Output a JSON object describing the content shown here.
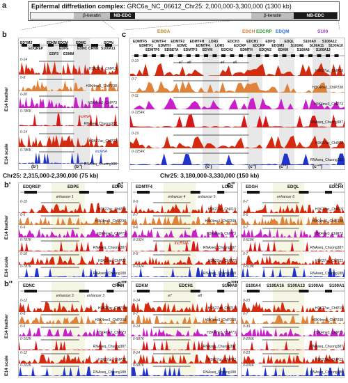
{
  "panel_a": {
    "label": "a",
    "title_bold": "Epifermal diffretiation complex:",
    "title_rest": "GRC6a_NC_06612_Chr25: 2,000,000-3,300,000 (1300 kb)",
    "segments": [
      "β-keratin",
      "NB-EDC",
      "β-keratin",
      "NB-EDC"
    ]
  },
  "panel_b": {
    "label": "b",
    "genes": [
      "EDYM2",
      "EDKM",
      "EDCM",
      "EDMC",
      "CRNN",
      "SCPN",
      "EDQREP",
      "EDP3",
      "EDPE",
      "EDMM",
      "EDNC",
      "S100A11"
    ],
    "subregions": [
      "(b')",
      "(b'')"
    ],
    "tracks": [
      {
        "range": "0-14",
        "name": "H3K27ac_ChIP19"
      },
      {
        "range": "0-8",
        "name": "H3K4me1_ChIP238"
      },
      {
        "range": "0-20",
        "name": "H3K4me3_ChIP73"
      },
      {
        "range": "0-780K",
        "name": "RNAseq_Chuong387"
      },
      {
        "range": "0-14",
        "name": "H3K27ac_ChIP22"
      },
      {
        "range": "0-780K",
        "name": "RNAseq_Chuong188"
      }
    ],
    "annotations": [
      "lncRNA",
      "lncRNA"
    ],
    "coord": "Chr25: 2,315,000-2,390,000 (75 kb)"
  },
  "panel_c": {
    "label": "c",
    "families": [
      "EDDA",
      "EDCH",
      "EDCRP",
      "EDQM",
      "S100"
    ],
    "genes": [
      "EDMTF5",
      "EDMTF1",
      "EDMTF6",
      "EDMTF4",
      "EDMTH",
      "EDBETA",
      "EDMTF2",
      "EDMC",
      "EDMTF3",
      "EDMTFH",
      "EDMTF4",
      "EDYM",
      "LOR3",
      "LOR5",
      "EDCH2",
      "EDCH3",
      "EDCRP",
      "EDMTH",
      "EDCH1",
      "EDCRP",
      "EDQM2",
      "EDPQ",
      "EDQM3",
      "EDKM",
      "EDQL",
      "S100A6",
      "S100A8",
      "S100A9",
      "S100A11",
      "S100A13",
      "S100A12",
      "S100A10"
    ],
    "subregions": [
      "(c')",
      "(c'')",
      "(c''')",
      "(c'''')"
    ],
    "tracks": [
      {
        "range": "0-19",
        "name": "H3K27ac_ChIP19"
      },
      {
        "range": "0-7",
        "name": "H3K4me1_ChIP238"
      },
      {
        "range": "0-31",
        "name": "H3K4me3_ChIP73"
      },
      {
        "range": "0-7254K",
        "name": "RNAseq_Chuong387"
      },
      {
        "range": "0-19",
        "name": "H3K27ac_ChIP22"
      },
      {
        "range": "0-7254K",
        "name": "RNAseq_Chuong188"
      }
    ],
    "enhancers": [
      "e7",
      "e8",
      "e4",
      "e5"
    ],
    "coord": "Chr25: 3,180,000-3,330,000 (150 kb)"
  },
  "side_labels": {
    "feather": "E14 feather",
    "scale": "E14 scale"
  },
  "zoom_panels": [
    {
      "label": "b'",
      "genes": [
        "EDQREP",
        "EDPE",
        "EDP3"
      ],
      "enhancer": "enhancer 1",
      "tracks": [
        {
          "range": "0-10",
          "name": "H3K27ac_ChIP19"
        },
        {
          "range": "0-6",
          "name": "H3K4me1_ChIP238"
        },
        {
          "range": "0-9",
          "name": "H3K4me3_ChIP73"
        },
        {
          "range": "0-787K",
          "name": "RNAseq_Chuong387"
        },
        {
          "range": "0-10",
          "name": "H3K27ac_ChIP22"
        },
        {
          "range": "0-787K",
          "name": "RNAseq_Chuong188"
        }
      ]
    },
    {
      "label": "c'",
      "genes": [
        "EDMTF4",
        "LOR3"
      ],
      "enhancer": "enhancer 4",
      "enhancer2": "enhancer 5",
      "extra": "lncRNA",
      "tracks": [
        {
          "range": "0-9",
          "name": "H3K27ac_ChIP19"
        },
        {
          "range": "0-7",
          "name": "H3K4me1_ChIP238"
        },
        {
          "range": "0-6",
          "name": "H3K4me3_ChIP73"
        },
        {
          "range": "0-1924",
          "name": "RNAseq_Chuong387"
        },
        {
          "range": "0-9",
          "name": "H3K27ac_ChIP22"
        },
        {
          "range": "0-1924",
          "name": "RNAseq_Chuong188"
        }
      ]
    },
    {
      "label": "c''",
      "genes": [
        "EDGH",
        "EDQL",
        "EDCH4"
      ],
      "enhancer": "enhancer 6",
      "scale": "10 kb",
      "tracks": [
        {
          "range": "0-7",
          "name": "H3K27ac_ChIP19"
        },
        {
          "range": "0-5",
          "name": "H3K4me1_ChIP238"
        },
        {
          "range": "0-7",
          "name": "H3K4me3_ChIP73"
        },
        {
          "range": "0-518K",
          "name": "RNAseq_Chuong387"
        },
        {
          "range": "0-7",
          "name": "H3K27ac_ChIP22"
        },
        {
          "range": "0-518K",
          "name": "RNAseq_Chuong188"
        }
      ]
    },
    {
      "label": "b''",
      "genes": [
        "EDNC",
        "CRNN"
      ],
      "enhancer": "enhancer 3",
      "enhancer2": "enhancer 3",
      "tracks": [
        {
          "range": "0-12",
          "name": "H3K27ac_ChIP19"
        },
        {
          "range": "0-8",
          "name": "H3K4me1_ChIP238"
        },
        {
          "range": "0-5",
          "name": "H3K4me3_ChIP73"
        },
        {
          "range": "0-162K",
          "name": "RNAseq_Chuong387"
        },
        {
          "range": "0-12",
          "name": "H3K27ac_ChIP22"
        },
        {
          "range": "0-162K",
          "name": "RNAseq_Chuong188"
        }
      ]
    },
    {
      "label": "c'''",
      "genes": [
        "EDKM",
        "EDCH1",
        "S100A9"
      ],
      "enhancer": "e7",
      "enhancer2": "e8",
      "tracks": [
        {
          "range": "0-14",
          "name": "H3K27ac_ChIP19"
        },
        {
          "range": "0-7",
          "name": "H3K4me1_ChIP238"
        },
        {
          "range": "0-14",
          "name": "H3K4me3_ChIP73"
        },
        {
          "range": "0-587K",
          "name": "RNAseq_Chuong387"
        },
        {
          "range": "0-14",
          "name": "H3K27ac_ChIP22"
        },
        {
          "range": "0-587K",
          "name": "RNAseq_Chuong188"
        }
      ]
    },
    {
      "label": "c''''",
      "genes": [
        "S100A4",
        "S100A16",
        "S100A13",
        "S100A6",
        "S100A14"
      ],
      "tracks": [
        {
          "range": "0-23",
          "name": "H3K27ac_ChIP19"
        },
        {
          "range": "0-7",
          "name": "H3K4me1_ChIP238"
        },
        {
          "range": "0-33",
          "name": "H3K4me3_ChIP73"
        },
        {
          "range": "0-206K",
          "name": "RNAseq_Chuong387"
        },
        {
          "range": "0-23",
          "name": "H3K27ac_ChIP22"
        },
        {
          "range": "0-206K",
          "name": "RNAseq_Chuong188"
        }
      ]
    }
  ],
  "colors": {
    "k27ac": "#d42a10",
    "k4me1": "#e0823a",
    "k4me3": "#c81fc8",
    "rna_feather": "#d81818",
    "rna_scale": "#2233cc",
    "edda": "#b8860b",
    "edch": "#e07020",
    "edcrp": "#2a9a2a",
    "edqm": "#2a6ad8",
    "s100": "#9b30d0"
  }
}
